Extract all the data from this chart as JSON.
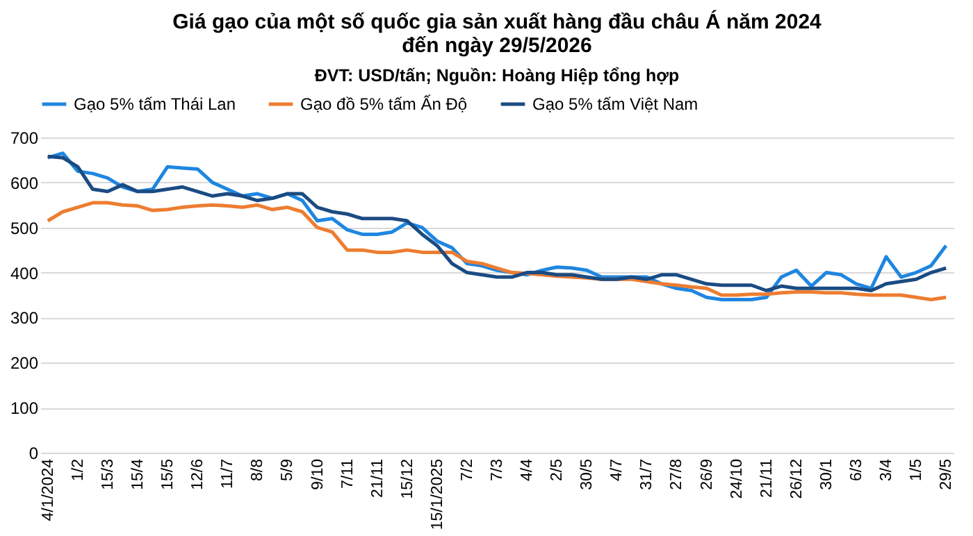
{
  "chart_data": {
    "type": "line",
    "title": "Giá gạo của một số quốc gia sản xuất hàng đầu châu Á năm 2024\nđến ngày 29/5/2026",
    "subtitle": "ĐVT: USD/tấn; Nguồn: Hoàng Hiệp tổng hợp",
    "categories": [
      "4/1/2024",
      null,
      "1/2",
      null,
      "15/3",
      null,
      "15/4",
      null,
      "15/5",
      null,
      "12/6",
      null,
      "11/7",
      null,
      "8/8",
      null,
      "5/9",
      null,
      "9/10",
      null,
      "7/11",
      null,
      "21/11",
      null,
      "15/12",
      null,
      "15/1/2025",
      null,
      "7/2",
      null,
      "7/3",
      null,
      "4/4",
      null,
      "2/5",
      null,
      "30/5",
      null,
      "4/7",
      null,
      "31/7",
      null,
      "27/8",
      null,
      "26/9",
      null,
      "24/10",
      null,
      "21/11",
      null,
      "26/12",
      null,
      "30/1",
      null,
      "6/3",
      null,
      "3/4",
      null,
      "1/5",
      null,
      "29/5"
    ],
    "series": [
      {
        "name": "Gạo 5% tấm Thái Lan",
        "color": "#1f86e0",
        "values": [
          655,
          665,
          625,
          620,
          610,
          590,
          580,
          585,
          635,
          632,
          630,
          600,
          585,
          570,
          575,
          565,
          575,
          560,
          515,
          520,
          495,
          485,
          485,
          490,
          510,
          500,
          470,
          455,
          420,
          415,
          405,
          400,
          395,
          405,
          412,
          410,
          405,
          390,
          390,
          390,
          390,
          375,
          365,
          360,
          345,
          340,
          340,
          340,
          345,
          390,
          405,
          370,
          400,
          395,
          375,
          365,
          435,
          390,
          400,
          415,
          460
        ]
      },
      {
        "name": "Gạo đồ 5% tấm Ấn Độ",
        "color": "#ed7d31",
        "values": [
          515,
          535,
          545,
          555,
          555,
          550,
          548,
          538,
          540,
          545,
          548,
          550,
          548,
          545,
          550,
          540,
          545,
          535,
          500,
          490,
          450,
          450,
          445,
          445,
          450,
          445,
          445,
          445,
          425,
          420,
          410,
          400,
          398,
          395,
          392,
          390,
          388,
          385,
          385,
          385,
          380,
          375,
          372,
          368,
          365,
          350,
          350,
          352,
          352,
          355,
          357,
          357,
          355,
          355,
          352,
          350,
          350,
          350,
          345,
          340,
          345
        ]
      },
      {
        "name": "Gạo 5% tấm Việt Nam",
        "color": "#1b4b82",
        "values": [
          658,
          655,
          635,
          585,
          580,
          595,
          580,
          580,
          585,
          590,
          580,
          570,
          575,
          570,
          560,
          565,
          575,
          575,
          545,
          535,
          530,
          520,
          520,
          520,
          515,
          485,
          460,
          420,
          400,
          395,
          390,
          390,
          400,
          400,
          395,
          395,
          390,
          385,
          385,
          390,
          385,
          395,
          395,
          385,
          375,
          372,
          372,
          372,
          360,
          370,
          365,
          365,
          365,
          365,
          365,
          360,
          375,
          380,
          385,
          400,
          410
        ]
      }
    ],
    "ylim": [
      0,
      700
    ],
    "yticks": [
      0,
      100,
      200,
      300,
      400,
      500,
      600,
      700
    ],
    "grid": "y",
    "legend": "top",
    "marker": "none",
    "line_style": "solid"
  }
}
